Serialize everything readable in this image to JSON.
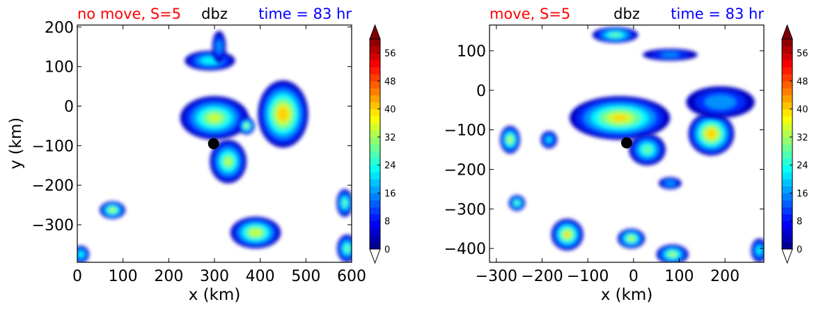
{
  "chart_data": [
    {
      "type": "contour",
      "title_left": "no move, S=5",
      "title_center": "dbz",
      "title_right": "time = 83 hr",
      "title_left_color": "#ff0000",
      "title_right_color": "#0000ff",
      "xlabel": "x (km)",
      "ylabel": "y (km)",
      "xlim": [
        0,
        600
      ],
      "ylim": [
        -395,
        205
      ],
      "xticks": [
        0,
        100,
        200,
        300,
        400,
        500,
        600
      ],
      "yticks": [
        200,
        100,
        0,
        -100,
        -200,
        -300
      ],
      "colorbar": {
        "ticks": [
          0,
          8,
          16,
          24,
          32,
          40,
          48,
          56
        ],
        "range": [
          0,
          60
        ],
        "extend": "both"
      },
      "marker": {
        "x": 298,
        "y": -95
      },
      "cells": [
        {
          "x": 450,
          "y": -20,
          "rx": 55,
          "ry": 85,
          "dbz": 44
        },
        {
          "x": 300,
          "y": -30,
          "rx": 75,
          "ry": 55,
          "dbz": 36
        },
        {
          "x": 330,
          "y": -140,
          "rx": 40,
          "ry": 55,
          "dbz": 34
        },
        {
          "x": 370,
          "y": -50,
          "rx": 18,
          "ry": 22,
          "dbz": 34
        },
        {
          "x": 290,
          "y": 115,
          "rx": 55,
          "ry": 25,
          "dbz": 26
        },
        {
          "x": 310,
          "y": 150,
          "rx": 15,
          "ry": 40,
          "dbz": 18
        },
        {
          "x": 390,
          "y": -320,
          "rx": 55,
          "ry": 40,
          "dbz": 38
        },
        {
          "x": 77,
          "y": -263,
          "rx": 28,
          "ry": 22,
          "dbz": 36
        },
        {
          "x": 585,
          "y": -245,
          "rx": 18,
          "ry": 35,
          "dbz": 30
        },
        {
          "x": 590,
          "y": -360,
          "rx": 22,
          "ry": 35,
          "dbz": 30
        },
        {
          "x": 8,
          "y": -375,
          "rx": 18,
          "ry": 22,
          "dbz": 26
        }
      ]
    },
    {
      "type": "contour",
      "title_left": "move, S=5",
      "title_center": "dbz",
      "title_right": "time = 83 hr",
      "title_left_color": "#ff0000",
      "title_right_color": "#0000ff",
      "xlabel": "x (km)",
      "ylabel": "",
      "xlim": [
        -315,
        285
      ],
      "ylim": [
        -435,
        165
      ],
      "xticks": [
        -300,
        -200,
        -100,
        0,
        100,
        200
      ],
      "yticks": [
        100,
        0,
        -100,
        -200,
        -300,
        -400
      ],
      "colorbar": {
        "ticks": [
          0,
          8,
          16,
          24,
          32,
          40,
          48,
          56
        ],
        "range": [
          0,
          60
        ],
        "extend": "both"
      },
      "marker": {
        "x": -15,
        "y": -133
      },
      "cells": [
        {
          "x": -30,
          "y": -70,
          "rx": 110,
          "ry": 55,
          "dbz": 40
        },
        {
          "x": 170,
          "y": -110,
          "rx": 50,
          "ry": 55,
          "dbz": 44
        },
        {
          "x": 190,
          "y": -30,
          "rx": 75,
          "ry": 40,
          "dbz": 20
        },
        {
          "x": 30,
          "y": -150,
          "rx": 40,
          "ry": 40,
          "dbz": 30
        },
        {
          "x": -270,
          "y": -125,
          "rx": 22,
          "ry": 35,
          "dbz": 36
        },
        {
          "x": -185,
          "y": -125,
          "rx": 18,
          "ry": 22,
          "dbz": 22
        },
        {
          "x": 80,
          "y": -235,
          "rx": 25,
          "ry": 15,
          "dbz": 20
        },
        {
          "x": -40,
          "y": 140,
          "rx": 50,
          "ry": 20,
          "dbz": 30
        },
        {
          "x": 80,
          "y": 90,
          "rx": 60,
          "ry": 15,
          "dbz": 16
        },
        {
          "x": -145,
          "y": -365,
          "rx": 35,
          "ry": 40,
          "dbz": 40
        },
        {
          "x": -5,
          "y": -375,
          "rx": 30,
          "ry": 25,
          "dbz": 36
        },
        {
          "x": 85,
          "y": -415,
          "rx": 35,
          "ry": 25,
          "dbz": 34
        },
        {
          "x": -255,
          "y": -285,
          "rx": 18,
          "ry": 20,
          "dbz": 30
        },
        {
          "x": 275,
          "y": -405,
          "rx": 18,
          "ry": 30,
          "dbz": 24
        }
      ]
    }
  ]
}
